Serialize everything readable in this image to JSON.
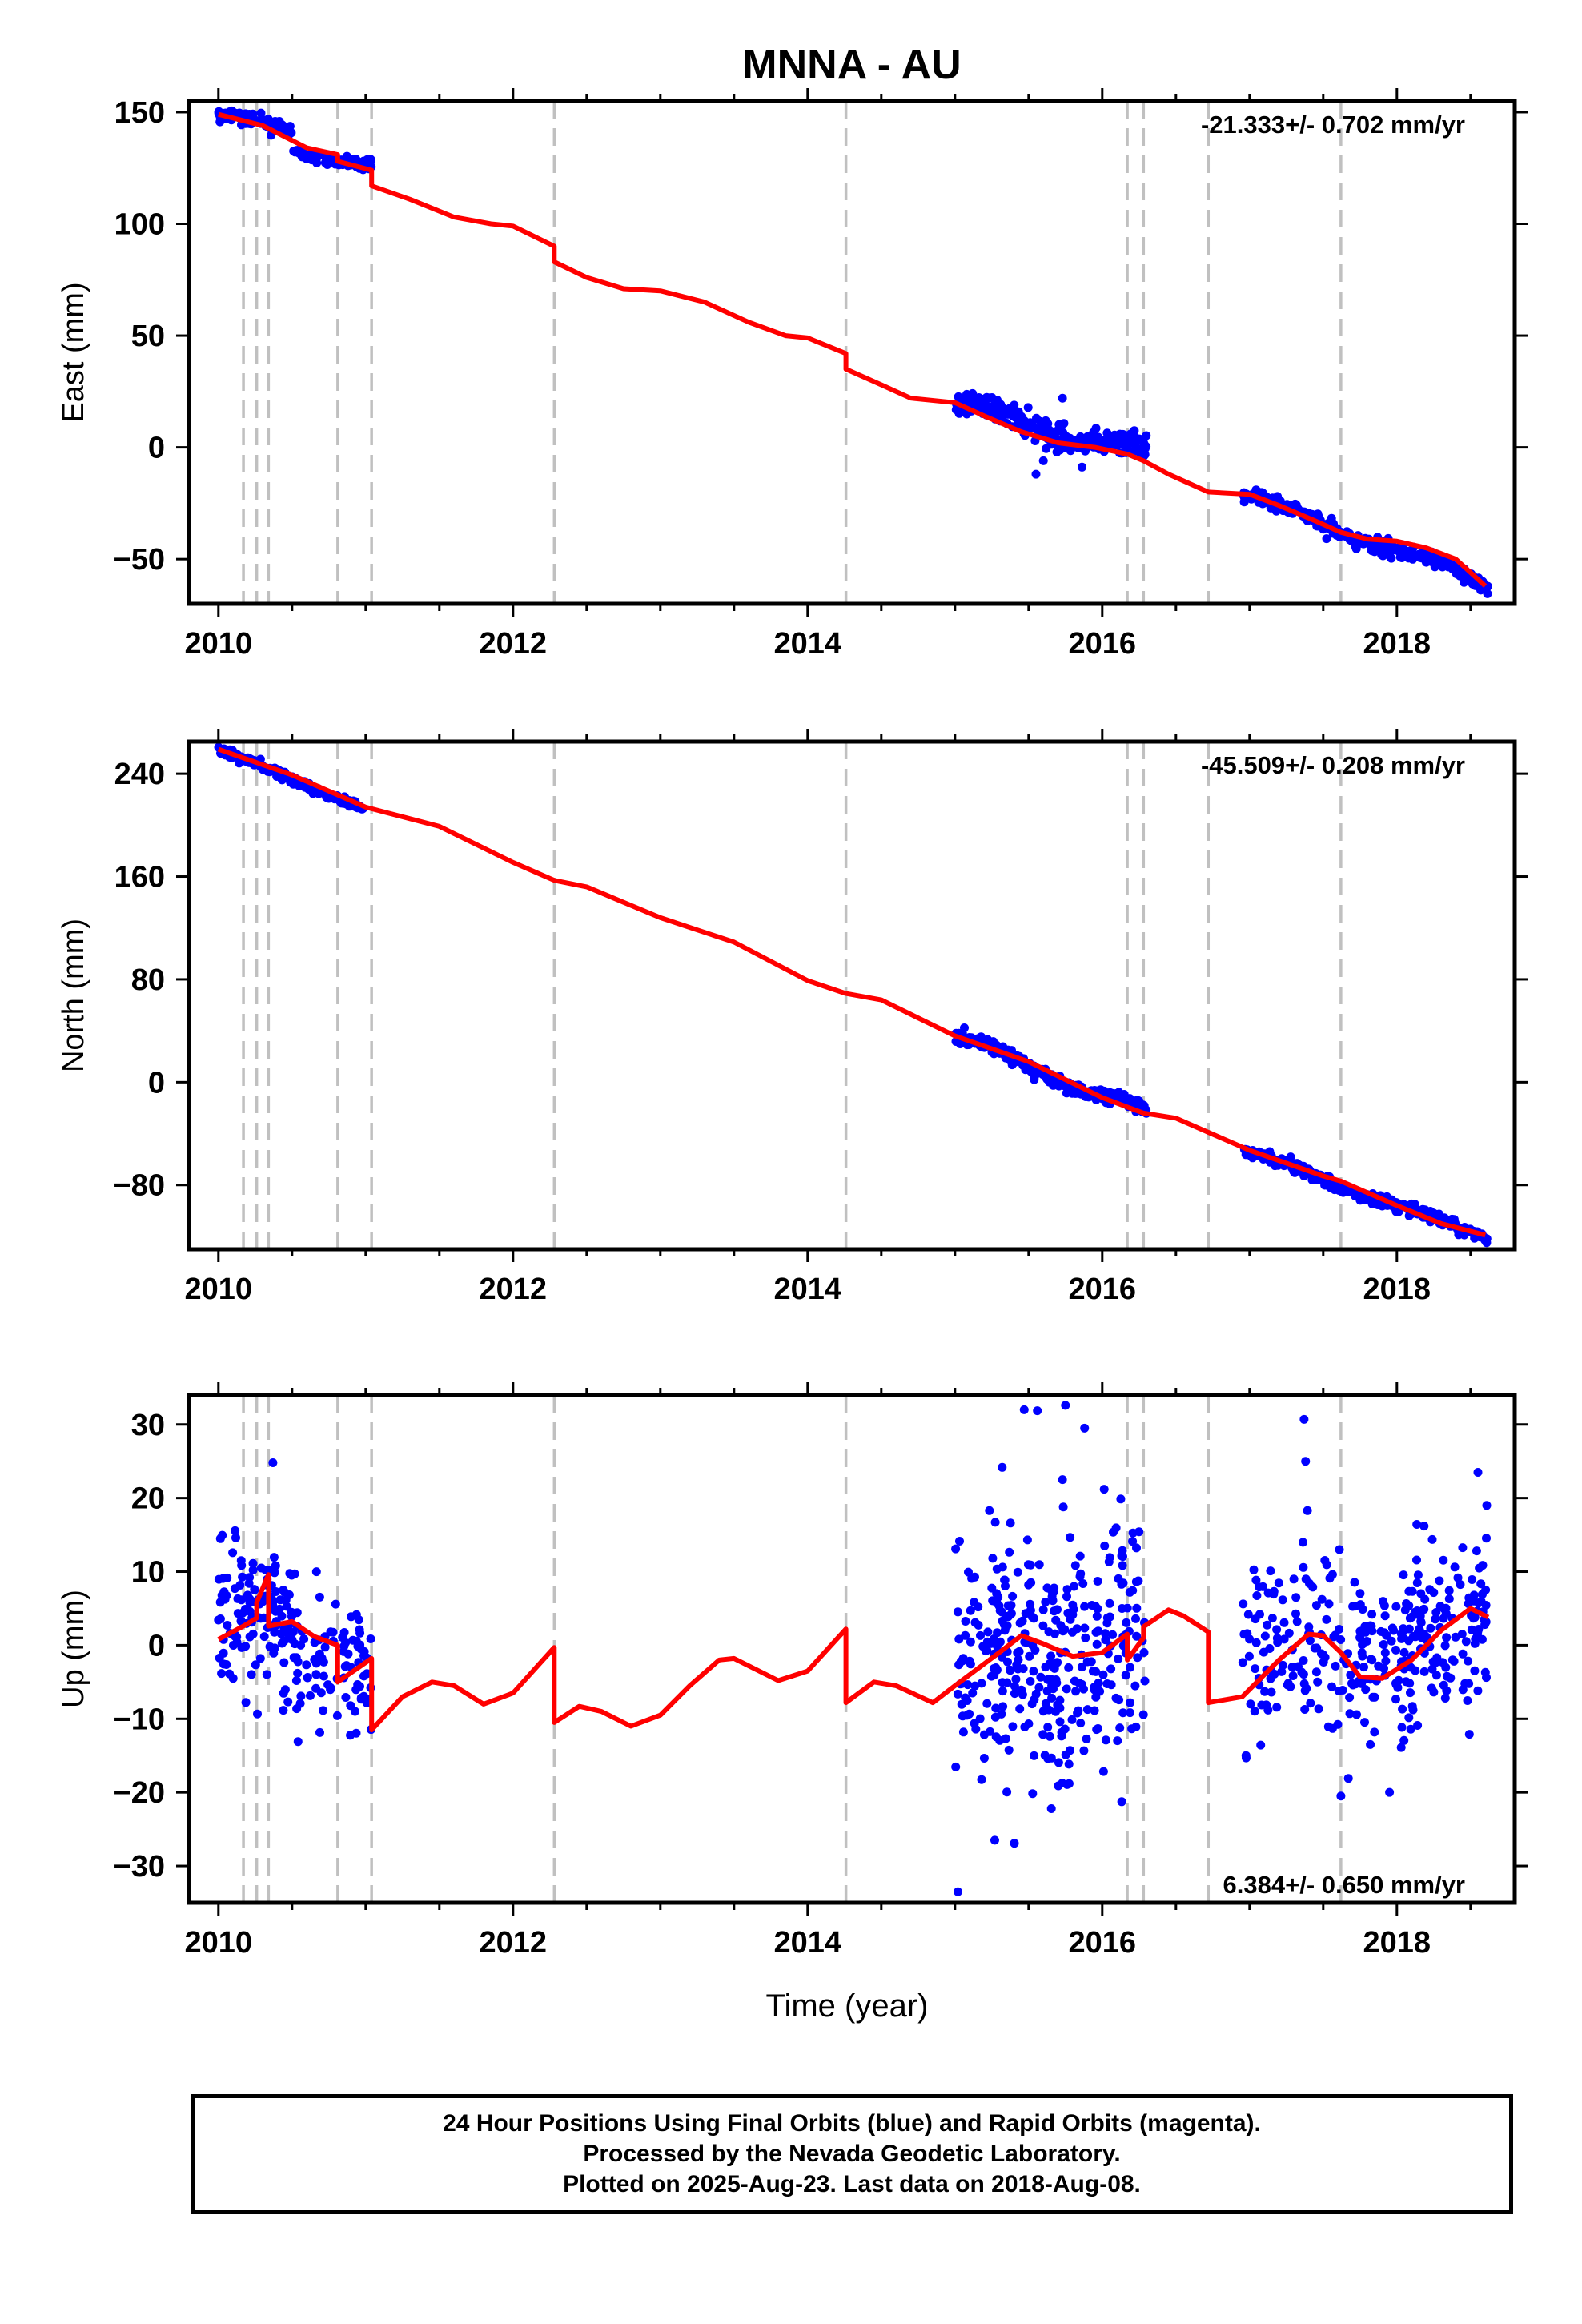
{
  "chart_data": [
    {
      "type": "scatter",
      "title": "MNNA - AU",
      "ylabel": "East (mm)",
      "rate_text": "-21.333+/- 0.702 mm/yr",
      "xlim": [
        2009.8,
        2018.8
      ],
      "ylim": [
        -70,
        155
      ],
      "x_ticks": [
        2010,
        2012,
        2014,
        2016,
        2018
      ],
      "y_ticks": [
        150,
        100,
        50,
        0,
        -50
      ],
      "y_tick_labels": [
        "150",
        "100",
        "50",
        "0",
        "−50"
      ],
      "break_epochs": [
        2010.17,
        2010.26,
        2010.34,
        2010.81,
        2011.04,
        2012.28,
        2014.26,
        2016.17,
        2016.28,
        2016.72,
        2017.62
      ],
      "model_line": [
        [
          2010.0,
          149
        ],
        [
          2010.3,
          144
        ],
        [
          2010.6,
          134
        ],
        [
          2010.81,
          131
        ],
        [
          2010.81,
          128
        ],
        [
          2011.04,
          124
        ],
        [
          2011.04,
          117
        ],
        [
          2011.3,
          111
        ],
        [
          2011.6,
          103
        ],
        [
          2011.85,
          100
        ],
        [
          2012.0,
          99
        ],
        [
          2012.28,
          90
        ],
        [
          2012.28,
          83
        ],
        [
          2012.5,
          76
        ],
        [
          2012.75,
          71
        ],
        [
          2013.0,
          70
        ],
        [
          2013.3,
          65
        ],
        [
          2013.6,
          56
        ],
        [
          2013.85,
          50
        ],
        [
          2014.0,
          49
        ],
        [
          2014.26,
          42
        ],
        [
          2014.26,
          35
        ],
        [
          2014.5,
          28
        ],
        [
          2014.7,
          22
        ],
        [
          2015.0,
          20
        ],
        [
          2015.2,
          14
        ],
        [
          2015.45,
          7
        ],
        [
          2015.7,
          2
        ],
        [
          2015.95,
          0
        ],
        [
          2016.17,
          -3
        ],
        [
          2016.28,
          -6
        ],
        [
          2016.45,
          -12
        ],
        [
          2016.72,
          -20
        ],
        [
          2017.0,
          -21
        ],
        [
          2017.2,
          -26
        ],
        [
          2017.45,
          -33
        ],
        [
          2017.62,
          -38
        ],
        [
          2017.8,
          -41
        ],
        [
          2018.0,
          -42
        ],
        [
          2018.2,
          -45
        ],
        [
          2018.4,
          -50
        ],
        [
          2018.6,
          -62
        ]
      ],
      "segments": [
        {
          "x0": 2010.0,
          "x1": 2010.5,
          "a": 149,
          "b": -17,
          "amp": 2,
          "sd": 1.2,
          "n": 130
        },
        {
          "x0": 2010.5,
          "x1": 2011.04,
          "a": 133,
          "b": -12,
          "amp": 1.5,
          "sd": 1.2,
          "n": 90
        },
        {
          "x0": 2015.0,
          "x1": 2016.3,
          "a": 19,
          "b": -17,
          "amp": 3,
          "sd": 2.6,
          "n": 340
        },
        {
          "x0": 2016.95,
          "x1": 2018.62,
          "a": -21,
          "b": -24,
          "amp": 2,
          "sd": 1.5,
          "n": 330
        }
      ],
      "outliers": [
        [
          2015.73,
          22
        ],
        [
          2015.55,
          -12
        ],
        [
          2015.6,
          -6
        ],
        [
          2015.3,
          15
        ]
      ]
    },
    {
      "type": "scatter",
      "ylabel": "North (mm)",
      "rate_text": "-45.509+/- 0.208 mm/yr",
      "xlim": [
        2009.8,
        2018.8
      ],
      "ylim": [
        -130,
        265
      ],
      "x_ticks": [
        2010,
        2012,
        2014,
        2016,
        2018
      ],
      "y_ticks": [
        240,
        160,
        80,
        0,
        -80
      ],
      "y_tick_labels": [
        "240",
        "160",
        "80",
        "0",
        "−80"
      ],
      "break_epochs": [
        2010.17,
        2010.26,
        2010.34,
        2010.81,
        2011.04,
        2012.28,
        2014.26,
        2016.17,
        2016.28,
        2016.72,
        2017.62
      ],
      "model_line": [
        [
          2010.0,
          259
        ],
        [
          2010.5,
          239
        ],
        [
          2011.0,
          214
        ],
        [
          2011.5,
          199
        ],
        [
          2012.0,
          171
        ],
        [
          2012.28,
          157
        ],
        [
          2012.5,
          152
        ],
        [
          2013.0,
          128
        ],
        [
          2013.5,
          109
        ],
        [
          2014.0,
          79
        ],
        [
          2014.26,
          69
        ],
        [
          2014.5,
          64
        ],
        [
          2015.0,
          36
        ],
        [
          2015.5,
          16
        ],
        [
          2016.0,
          -12
        ],
        [
          2016.28,
          -24
        ],
        [
          2016.5,
          -28
        ],
        [
          2017.0,
          -53
        ],
        [
          2017.5,
          -73
        ],
        [
          2017.62,
          -77
        ],
        [
          2018.0,
          -96
        ],
        [
          2018.3,
          -110
        ],
        [
          2018.6,
          -119
        ]
      ],
      "segments": [
        {
          "x0": 2010.0,
          "x1": 2011.0,
          "a": 258,
          "b": -45,
          "amp": 1.5,
          "sd": 1.5,
          "n": 220
        },
        {
          "x0": 2015.0,
          "x1": 2016.3,
          "a": 35,
          "b": -45,
          "amp": 4,
          "sd": 2.5,
          "n": 340
        },
        {
          "x0": 2016.95,
          "x1": 2018.62,
          "a": -53,
          "b": -41,
          "amp": 2,
          "sd": 2.0,
          "n": 330
        }
      ],
      "outliers": []
    },
    {
      "type": "scatter",
      "ylabel": "Up (mm)",
      "xlabel": "Time (year)",
      "rate_text": "6.384+/- 0.650 mm/yr",
      "xlim": [
        2009.8,
        2018.8
      ],
      "ylim": [
        -35,
        34
      ],
      "x_ticks": [
        2010,
        2012,
        2014,
        2016,
        2018
      ],
      "y_ticks": [
        30,
        20,
        10,
        0,
        -10,
        -20,
        -30
      ],
      "y_tick_labels": [
        "30",
        "20",
        "10",
        "0",
        "−10",
        "−20",
        "−30"
      ],
      "break_epochs": [
        2010.17,
        2010.26,
        2010.34,
        2010.81,
        2011.04,
        2012.28,
        2014.26,
        2016.17,
        2016.28,
        2016.72,
        2017.62
      ],
      "model_line": [
        [
          2010.0,
          0.8
        ],
        [
          2010.17,
          2.6
        ],
        [
          2010.26,
          3.7
        ],
        [
          2010.26,
          5.8
        ],
        [
          2010.34,
          9.6
        ],
        [
          2010.34,
          2.6
        ],
        [
          2010.5,
          3.2
        ],
        [
          2010.65,
          1.2
        ],
        [
          2010.81,
          0.0
        ],
        [
          2010.81,
          -5.0
        ],
        [
          2011.04,
          -1.8
        ],
        [
          2011.04,
          -11.5
        ],
        [
          2011.25,
          -7.0
        ],
        [
          2011.45,
          -5.0
        ],
        [
          2011.6,
          -5.5
        ],
        [
          2011.8,
          -8.0
        ],
        [
          2012.0,
          -6.5
        ],
        [
          2012.28,
          -0.3
        ],
        [
          2012.28,
          -10.5
        ],
        [
          2012.45,
          -8.3
        ],
        [
          2012.6,
          -9.0
        ],
        [
          2012.8,
          -11.0
        ],
        [
          2013.0,
          -9.5
        ],
        [
          2013.2,
          -5.5
        ],
        [
          2013.4,
          -2.0
        ],
        [
          2013.5,
          -1.8
        ],
        [
          2013.8,
          -4.8
        ],
        [
          2014.0,
          -3.5
        ],
        [
          2014.26,
          2.2
        ],
        [
          2014.26,
          -7.8
        ],
        [
          2014.45,
          -5.0
        ],
        [
          2014.6,
          -5.5
        ],
        [
          2014.85,
          -7.8
        ],
        [
          2015.0,
          -5.5
        ],
        [
          2015.3,
          -1.0
        ],
        [
          2015.45,
          1.3
        ],
        [
          2015.6,
          0.2
        ],
        [
          2015.8,
          -1.5
        ],
        [
          2016.0,
          -1.0
        ],
        [
          2016.17,
          1.5
        ],
        [
          2016.17,
          -2.0
        ],
        [
          2016.28,
          1.0
        ],
        [
          2016.28,
          2.5
        ],
        [
          2016.45,
          4.8
        ],
        [
          2016.55,
          4.0
        ],
        [
          2016.72,
          1.8
        ],
        [
          2016.72,
          -7.8
        ],
        [
          2016.95,
          -7.0
        ],
        [
          2017.2,
          -2.0
        ],
        [
          2017.4,
          1.5
        ],
        [
          2017.5,
          1.3
        ],
        [
          2017.62,
          -1.0
        ],
        [
          2017.75,
          -4.3
        ],
        [
          2017.9,
          -4.5
        ],
        [
          2018.1,
          -2.0
        ],
        [
          2018.3,
          2.0
        ],
        [
          2018.5,
          5.0
        ],
        [
          2018.62,
          3.8
        ]
      ],
      "segments": [
        {
          "x0": 2010.0,
          "x1": 2010.5,
          "a": 3.5,
          "b": 0,
          "amp": 0,
          "sd": 4.8,
          "n": 130
        },
        {
          "x0": 2010.5,
          "x1": 2011.04,
          "a": -0.5,
          "b": -5,
          "amp": 0,
          "sd": 4.3,
          "n": 90
        },
        {
          "x0": 2015.0,
          "x1": 2016.3,
          "a": -2.5,
          "b": 2,
          "amp": 1.5,
          "sd": 9.0,
          "n": 340
        },
        {
          "x0": 2016.95,
          "x1": 2017.62,
          "a": -2,
          "b": 4,
          "amp": 0,
          "sd": 6.5,
          "n": 110
        },
        {
          "x0": 2017.62,
          "x1": 2018.62,
          "a": -4,
          "b": 9,
          "amp": 0,
          "sd": 5.5,
          "n": 220
        }
      ],
      "outliers": [
        [
          2010.37,
          24.8
        ],
        [
          2015.47,
          32.0
        ],
        [
          2015.75,
          32.6
        ],
        [
          2015.88,
          29.5
        ],
        [
          2015.73,
          22.5
        ],
        [
          2017.37,
          30.7
        ],
        [
          2017.38,
          25.0
        ],
        [
          2015.02,
          -33.5
        ],
        [
          2015.27,
          -26.5
        ],
        [
          2018.55,
          23.5
        ],
        [
          2017.62,
          -20.5
        ],
        [
          2017.95,
          -20.0
        ]
      ]
    }
  ],
  "footer": {
    "line1": "24 Hour Positions Using Final Orbits (blue) and Rapid Orbits (magenta).",
    "line2": "Processed by the Nevada Geodetic Laboratory.",
    "line3": "Plotted on 2025-Aug-23. Last data on 2018-Aug-08."
  },
  "colors": {
    "points": "#0000ff",
    "model": "#ff0000",
    "breaks": "#c0c0c0",
    "axes": "#000000"
  }
}
